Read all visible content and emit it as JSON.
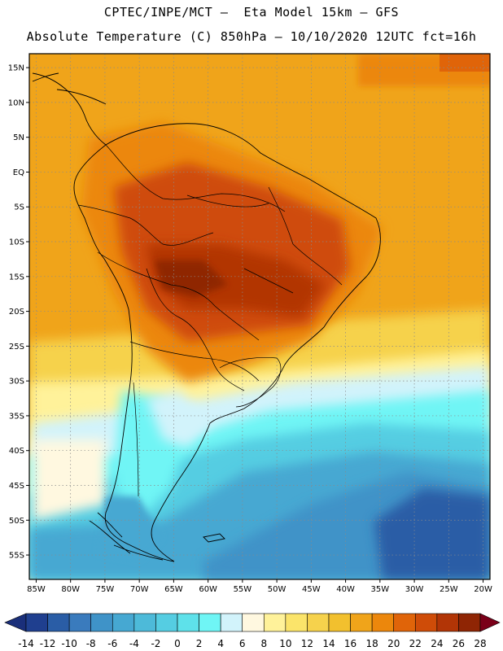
{
  "title": {
    "line1": "CPTEC/INPE/MCT –  Eta Model 15km – GFS",
    "line2": "Absolute Temperature (C) 850hPa – 10/10/2020 12UTC fct=16h"
  },
  "map": {
    "lon_range": [
      -86,
      -19
    ],
    "lat_range": [
      -58.5,
      17
    ],
    "latitude_labels": [
      {
        "lat": 15,
        "label": "15N"
      },
      {
        "lat": 10,
        "label": "10N"
      },
      {
        "lat": 5,
        "label": "5N"
      },
      {
        "lat": 0,
        "label": "EQ"
      },
      {
        "lat": -5,
        "label": "5S"
      },
      {
        "lat": -10,
        "label": "10S"
      },
      {
        "lat": -15,
        "label": "15S"
      },
      {
        "lat": -20,
        "label": "20S"
      },
      {
        "lat": -25,
        "label": "25S"
      },
      {
        "lat": -30,
        "label": "30S"
      },
      {
        "lat": -35,
        "label": "35S"
      },
      {
        "lat": -40,
        "label": "40S"
      },
      {
        "lat": -45,
        "label": "45S"
      },
      {
        "lat": -50,
        "label": "50S"
      },
      {
        "lat": -55,
        "label": "55S"
      }
    ],
    "longitude_labels": [
      {
        "lon": -85,
        "label": "85W"
      },
      {
        "lon": -80,
        "label": "80W"
      },
      {
        "lon": -75,
        "label": "75W"
      },
      {
        "lon": -70,
        "label": "70W"
      },
      {
        "lon": -65,
        "label": "65W"
      },
      {
        "lon": -60,
        "label": "60W"
      },
      {
        "lon": -55,
        "label": "55W"
      },
      {
        "lon": -50,
        "label": "50W"
      },
      {
        "lon": -45,
        "label": "45W"
      },
      {
        "lon": -40,
        "label": "40W"
      },
      {
        "lon": -35,
        "label": "35W"
      },
      {
        "lon": -30,
        "label": "30W"
      },
      {
        "lon": -25,
        "label": "25W"
      },
      {
        "lon": -20,
        "label": "20W"
      }
    ],
    "gridlines": "dotted"
  },
  "colorbar": {
    "ticks": [
      "-14",
      "-12",
      "-10",
      "-8",
      "-6",
      "-4",
      "-2",
      "0",
      "2",
      "4",
      "6",
      "8",
      "10",
      "12",
      "14",
      "16",
      "18",
      "20",
      "22",
      "24",
      "26",
      "28"
    ],
    "colors": [
      "#1f3f8f",
      "#2a5da6",
      "#3a7bbd",
      "#3f93c8",
      "#46a8d2",
      "#4dbad9",
      "#55cde2",
      "#5ee1ea",
      "#6ff5f5",
      "#d2f3fb",
      "#fff8e0",
      "#fff29a",
      "#fbe46a",
      "#f6d24c",
      "#f2c02e",
      "#f0a41a",
      "#ec870c",
      "#e06409",
      "#cf4c08",
      "#b23506",
      "#8f2504"
    ],
    "under_color": "#1a2f7a",
    "over_color": "#7a0019"
  }
}
